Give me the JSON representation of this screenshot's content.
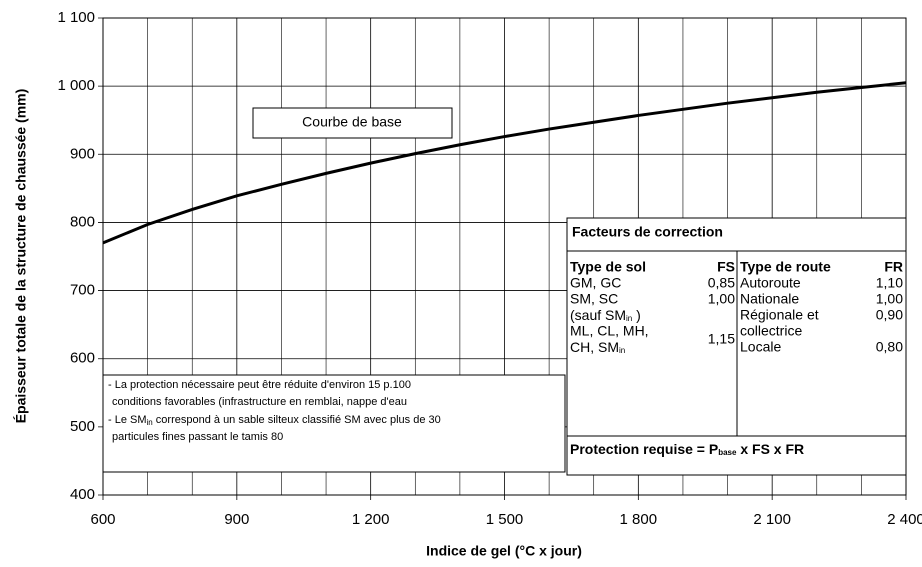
{
  "chart_data": {
    "type": "line",
    "xlabel": "Indice de gel (°C x jour)",
    "ylabel": "Épaisseur totale de la structure de chaussée (mm)",
    "x": [
      600,
      700,
      800,
      900,
      1000,
      1100,
      1200,
      1300,
      1400,
      1500,
      1600,
      1700,
      1800,
      1900,
      2000,
      2100,
      2200,
      2300,
      2400
    ],
    "series": [
      {
        "name": "Courbe de base",
        "color": "#000000",
        "values": [
          770,
          797,
          819,
          839,
          856,
          872,
          887,
          901,
          914,
          926,
          937,
          947,
          957,
          966,
          975,
          983,
          991,
          998,
          1005
        ]
      }
    ],
    "xlim": [
      600,
      2400
    ],
    "xticks": [
      600,
      900,
      {
        "value": 1200,
        "label": "1 200"
      },
      {
        "value": 1500,
        "label": "1 500"
      },
      {
        "value": 1800,
        "label": "1 800"
      },
      {
        "value": 2100,
        "label": "2 100"
      },
      {
        "value": 2400,
        "label": "2 400"
      }
    ],
    "x_grid_lines": [
      700,
      800,
      1000,
      1100,
      1300,
      1400,
      1600,
      1700,
      1900,
      2000,
      2200,
      2300
    ],
    "ylim": [
      400,
      1100
    ],
    "yticks": [
      400,
      500,
      600,
      700,
      800,
      900,
      {
        "value": 1000,
        "label": "1 000"
      },
      {
        "value": 1100,
        "label": "1 100"
      }
    ],
    "grid": true,
    "correction_table": {
      "title": "Facteurs de correction",
      "soil_header": [
        "Type de sol",
        "FS"
      ],
      "soil_rows": [
        [
          "GM, GC",
          "0,85"
        ],
        [
          "SM, SC",
          "1,00"
        ],
        [
          [
            "(sauf SM",
            "in",
            " )"
          ]
        ],
        [
          "ML, CL, MH,",
          "1,15"
        ],
        [
          [
            "CH, SM",
            "in"
          ]
        ]
      ],
      "road_header": [
        "Type de route",
        "FR"
      ],
      "road_rows": [
        [
          "Autoroute",
          "1,10"
        ],
        [
          "Nationale",
          "1,00"
        ],
        [
          "Régionale et",
          "0,90"
        ],
        [
          "collectrice"
        ],
        [
          "Locale",
          "0,80"
        ]
      ],
      "formula": [
        "Protection requise = P",
        "base",
        " x FS x FR"
      ]
    },
    "notes": [
      [
        "- La protection nécessaire peut être réduite d'environ 15 p.100"
      ],
      [
        "conditions favorables (infrastructure en remblai, nappe d'eau"
      ],
      [
        "- Le SM",
        "in",
        " correspond à un sable silteux classifié SM avec plus de 30"
      ],
      [
        "particules fines passant le tamis 80"
      ]
    ]
  }
}
